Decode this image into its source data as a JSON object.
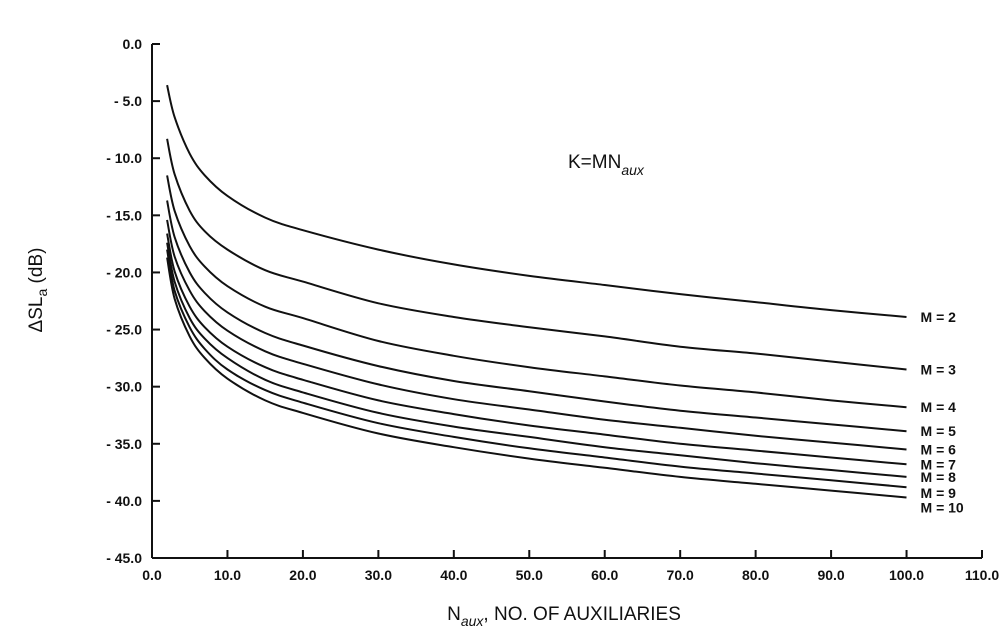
{
  "chart_data": {
    "type": "line",
    "title": "",
    "xlabel": "N",
    "xlabel_sub": "aux",
    "xlabel_rest": ", NO. OF AUXILIARIES",
    "ylabel": "ΔSL",
    "ylabel_sub": "a",
    "ylabel_rest": " (dB)",
    "xlim": [
      0,
      110
    ],
    "ylim": [
      -45,
      0
    ],
    "grid": false,
    "x_ticks": [
      "0.0",
      "10.0",
      "20.0",
      "30.0",
      "40.0",
      "50.0",
      "60.0",
      "70.0",
      "80.0",
      "90.0",
      "100.0",
      "110.0"
    ],
    "y_ticks": [
      "0.0",
      "- 5.0",
      "- 10.0",
      "- 15.0",
      "- 20.0",
      "- 25.0",
      "- 30.0",
      "- 35.0",
      "- 40.0",
      "- 45.0"
    ],
    "annotation": {
      "main": "K=MN",
      "sub": "aux"
    },
    "x": [
      2,
      3,
      5,
      7,
      10,
      15,
      20,
      30,
      40,
      50,
      60,
      70,
      80,
      90,
      100
    ],
    "series": [
      {
        "name": "M = 2",
        "values": [
          -3.6,
          -6.4,
          -9.6,
          -11.5,
          -13.3,
          -15.2,
          -16.3,
          -18.0,
          -19.3,
          -20.3,
          -21.1,
          -21.9,
          -22.6,
          -23.3,
          -23.9
        ]
      },
      {
        "name": "M = 3",
        "values": [
          -8.3,
          -11.4,
          -14.6,
          -16.4,
          -18.0,
          -19.8,
          -20.8,
          -22.7,
          -23.9,
          -24.8,
          -25.6,
          -26.5,
          -27.1,
          -27.8,
          -28.5
        ]
      },
      {
        "name": "M = 4",
        "values": [
          -11.5,
          -14.6,
          -17.7,
          -19.5,
          -21.2,
          -23.0,
          -24.0,
          -26.0,
          -27.3,
          -28.3,
          -29.1,
          -29.9,
          -30.5,
          -31.2,
          -31.8
        ]
      },
      {
        "name": "M = 5",
        "values": [
          -13.7,
          -16.9,
          -20.0,
          -21.8,
          -23.5,
          -25.3,
          -26.4,
          -28.2,
          -29.5,
          -30.4,
          -31.3,
          -32.1,
          -32.7,
          -33.3,
          -33.9
        ]
      },
      {
        "name": "M = 6",
        "values": [
          -15.4,
          -18.6,
          -21.6,
          -23.4,
          -25.1,
          -26.9,
          -28.0,
          -29.8,
          -31.1,
          -32.0,
          -32.9,
          -33.6,
          -34.3,
          -34.9,
          -35.5
        ]
      },
      {
        "name": "M = 7",
        "values": [
          -16.6,
          -19.9,
          -23.0,
          -24.8,
          -26.5,
          -28.3,
          -29.4,
          -31.2,
          -32.4,
          -33.4,
          -34.2,
          -35.0,
          -35.6,
          -36.2,
          -36.8
        ]
      },
      {
        "name": "M = 8",
        "values": [
          -17.4,
          -20.8,
          -24.0,
          -25.8,
          -27.5,
          -29.4,
          -30.5,
          -32.3,
          -33.5,
          -34.4,
          -35.3,
          -36.0,
          -36.7,
          -37.3,
          -37.9
        ]
      },
      {
        "name": "M = 9",
        "values": [
          -18.0,
          -21.6,
          -24.8,
          -26.7,
          -28.5,
          -30.3,
          -31.4,
          -33.2,
          -34.4,
          -35.4,
          -36.2,
          -37.0,
          -37.6,
          -38.2,
          -38.8
        ]
      },
      {
        "name": "M = 10",
        "values": [
          -18.7,
          -22.3,
          -25.6,
          -27.5,
          -29.3,
          -31.2,
          -32.3,
          -34.1,
          -35.3,
          -36.3,
          -37.1,
          -37.9,
          -38.5,
          -39.1,
          -39.7
        ]
      }
    ],
    "series_label_values": [
      -23.9,
      -28.5,
      -31.8,
      -33.9,
      -35.5,
      -36.8,
      -37.9,
      -38.8,
      -39.7
    ],
    "label_values": [
      -23.9,
      -28.5,
      -31.8,
      -33.9,
      -35.5,
      -36.8,
      -37.9,
      -39.3,
      -40.6
    ]
  }
}
